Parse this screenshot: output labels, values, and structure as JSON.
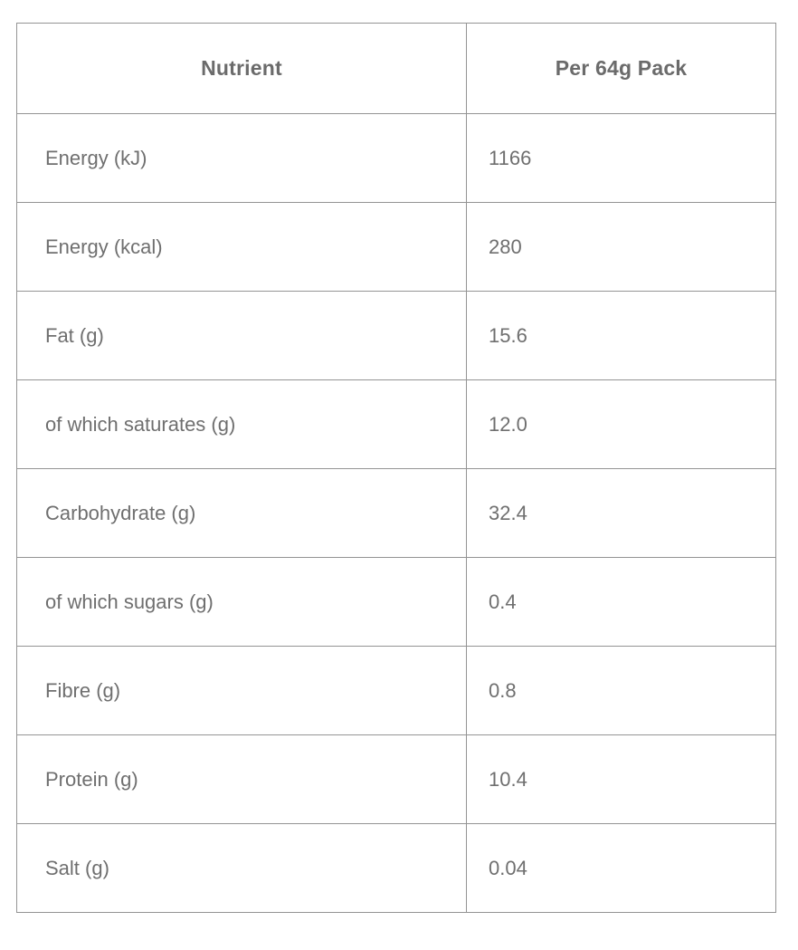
{
  "table": {
    "columns": [
      {
        "label": "Nutrient"
      },
      {
        "label": "Per 64g Pack"
      }
    ],
    "rows": [
      {
        "nutrient": "Energy (kJ)",
        "value": "1166"
      },
      {
        "nutrient": "Energy (kcal)",
        "value": "280"
      },
      {
        "nutrient": "Fat (g)",
        "value": "15.6"
      },
      {
        "nutrient": "of which saturates (g)",
        "value": "12.0"
      },
      {
        "nutrient": "Carbohydrate (g)",
        "value": "32.4"
      },
      {
        "nutrient": "of which sugars (g)",
        "value": "0.4"
      },
      {
        "nutrient": "Fibre (g)",
        "value": "0.8"
      },
      {
        "nutrient": "Protein (g)",
        "value": "10.4"
      },
      {
        "nutrient": "Salt (g)",
        "value": "0.04"
      }
    ],
    "colors": {
      "body_text": "#6f6f6f",
      "header_text": "#6b6b6b",
      "border": "#949494",
      "background": "#ffffff"
    }
  }
}
